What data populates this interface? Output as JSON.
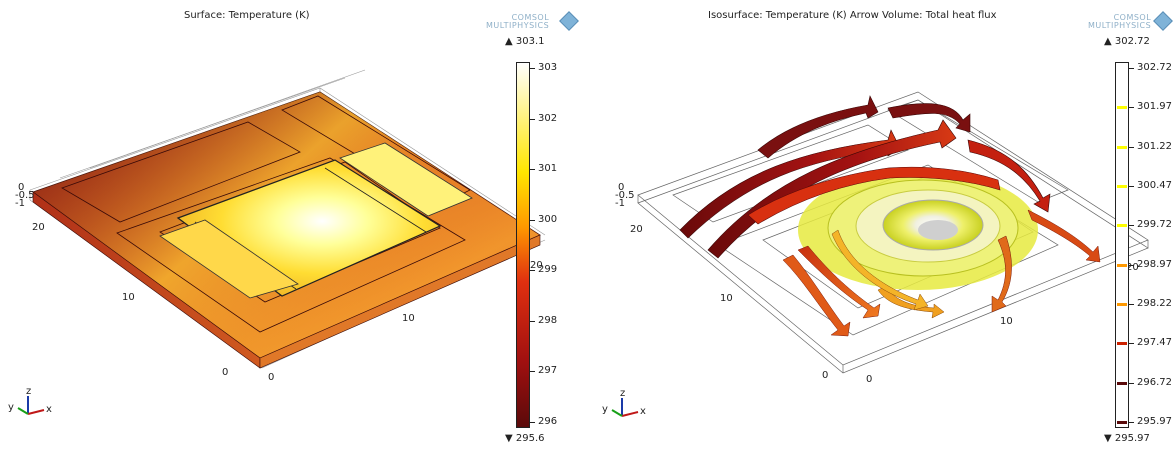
{
  "left": {
    "title": "Surface: Temperature (K)",
    "logo": [
      "COMSOL",
      "MULTIPHYSICS"
    ],
    "colorbar_max": "▲ 303.1",
    "colorbar_min": "▼ 295.6",
    "colorbar_ticks": [
      "303",
      "302",
      "301",
      "300",
      "299",
      "298",
      "297",
      "296"
    ],
    "axis_labels": {
      "z_top": "0",
      "z_mid": "-0.5",
      "z_low": "-1",
      "y20": "20",
      "y10": "10",
      "y0": "0",
      "x0": "0",
      "x10": "10",
      "x20": "20"
    },
    "triad": {
      "x": "x",
      "y": "y",
      "z": "z"
    }
  },
  "right": {
    "title": "Isosurface: Temperature (K)  Arrow Volume: Total heat flux",
    "logo": [
      "COMSOL",
      "MULTIPHYSICS"
    ],
    "colorbar_max": "▲ 302.72",
    "colorbar_min": "▼ 295.97",
    "colorbar_ticks": [
      "302.72",
      "301.97",
      "301.22",
      "300.47",
      "299.72",
      "298.97",
      "298.22",
      "297.47",
      "296.72",
      "295.97"
    ],
    "axis_labels": {
      "z_top": "0",
      "z_mid": "-0.5",
      "z_low": "-1",
      "y20": "20",
      "y10": "10",
      "y0": "0",
      "x0": "0",
      "x10": "10",
      "x20": "20"
    },
    "triad": {
      "x": "x",
      "y": "y",
      "z": "z"
    }
  },
  "colors": {
    "hot": "#ffffff",
    "warm": "#ffff00",
    "mid": "#ff9900",
    "cool": "#cc2200",
    "cold": "#5a0a0a"
  }
}
